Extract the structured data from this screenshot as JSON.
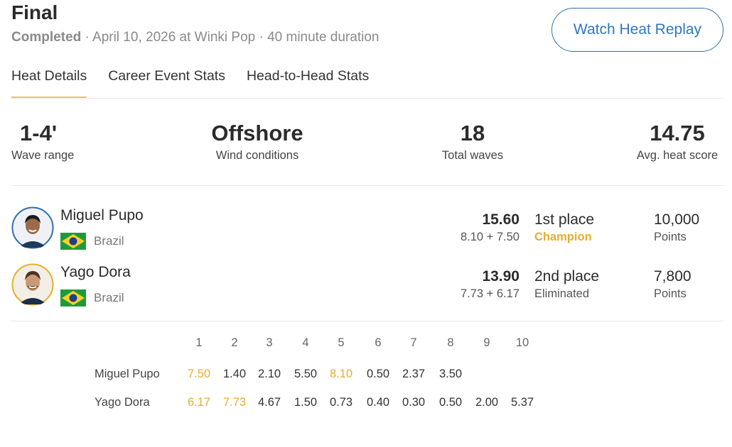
{
  "heat": {
    "title": "Final",
    "status": "Completed",
    "details": " · April 10, 2026 at Winki Pop · 40 minute duration",
    "replay_label": "Watch Heat Replay"
  },
  "tabs": [
    {
      "label": "Heat Details",
      "active": true
    },
    {
      "label": "Career Event Stats",
      "active": false
    },
    {
      "label": "Head-to-Head Stats",
      "active": false
    }
  ],
  "stats": [
    {
      "value": "1-4'",
      "label": "Wave range"
    },
    {
      "value": "Offshore",
      "label": "Wind conditions"
    },
    {
      "value": "18",
      "label": "Total waves"
    },
    {
      "value": "14.75",
      "label": "Avg. heat score"
    }
  ],
  "surfers": [
    {
      "name": "Miguel Pupo",
      "country": "Brazil",
      "score": "15.60",
      "breakdown": "8.10 + 7.50",
      "place": "1st place",
      "result": "Champion",
      "points": "10,000",
      "points_label": "Points",
      "avatar_ring": "#2e6fb0"
    },
    {
      "name": "Yago Dora",
      "country": "Brazil",
      "score": "13.90",
      "breakdown": "7.73 + 6.17",
      "place": "2nd place",
      "result": "Eliminated",
      "points": "7,800",
      "points_label": "Points",
      "avatar_ring": "#e7ad2e"
    }
  ],
  "waves": {
    "columns": [
      "1",
      "2",
      "3",
      "4",
      "5",
      "6",
      "7",
      "8",
      "9",
      "10"
    ],
    "rows": [
      {
        "name": "Miguel Pupo",
        "scores": [
          "7.50",
          "1.40",
          "2.10",
          "5.50",
          "8.10",
          "0.50",
          "2.37",
          "3.50",
          "",
          ""
        ],
        "counted": [
          0,
          4
        ]
      },
      {
        "name": "Yago Dora",
        "scores": [
          "6.17",
          "7.73",
          "4.67",
          "1.50",
          "0.73",
          "0.40",
          "0.30",
          "0.50",
          "2.00",
          "5.37"
        ],
        "counted": [
          0,
          1
        ]
      }
    ]
  },
  "colors": {
    "accent": "#e7ad2e",
    "link": "#2f78c2",
    "flag_green": "#1f9a3b",
    "flag_yellow": "#f5d128",
    "flag_blue": "#213e8c"
  },
  "icons": {
    "flag": "brazil-flag-icon",
    "avatar": "surfer-avatar"
  }
}
